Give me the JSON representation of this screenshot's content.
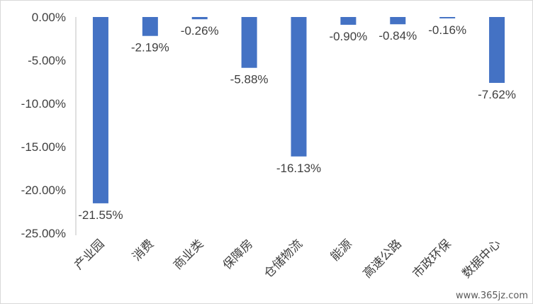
{
  "chart_data": {
    "type": "bar",
    "categories": [
      "产业园",
      "消费",
      "商业类",
      "保障房",
      "仓储物流",
      "能源",
      "高速公路",
      "市政环保",
      "数据中心"
    ],
    "values": [
      -21.55,
      -2.19,
      -0.26,
      -5.88,
      -16.13,
      -0.9,
      -0.84,
      -0.16,
      -7.62
    ],
    "data_labels": [
      "-21.55%",
      "-2.19%",
      "-0.26%",
      "-5.88%",
      "-16.13%",
      "-0.90%",
      "-0.84%",
      "-0.16%",
      "-7.62%"
    ],
    "y_ticks": [
      "0.00%",
      "-5.00%",
      "-10.00%",
      "-15.00%",
      "-20.00%",
      "-25.00%"
    ],
    "ylim": [
      -25,
      0
    ],
    "bar_color": "#4472c4",
    "gridlines": false,
    "legend": "none"
  },
  "watermark": "www.365jz.com"
}
